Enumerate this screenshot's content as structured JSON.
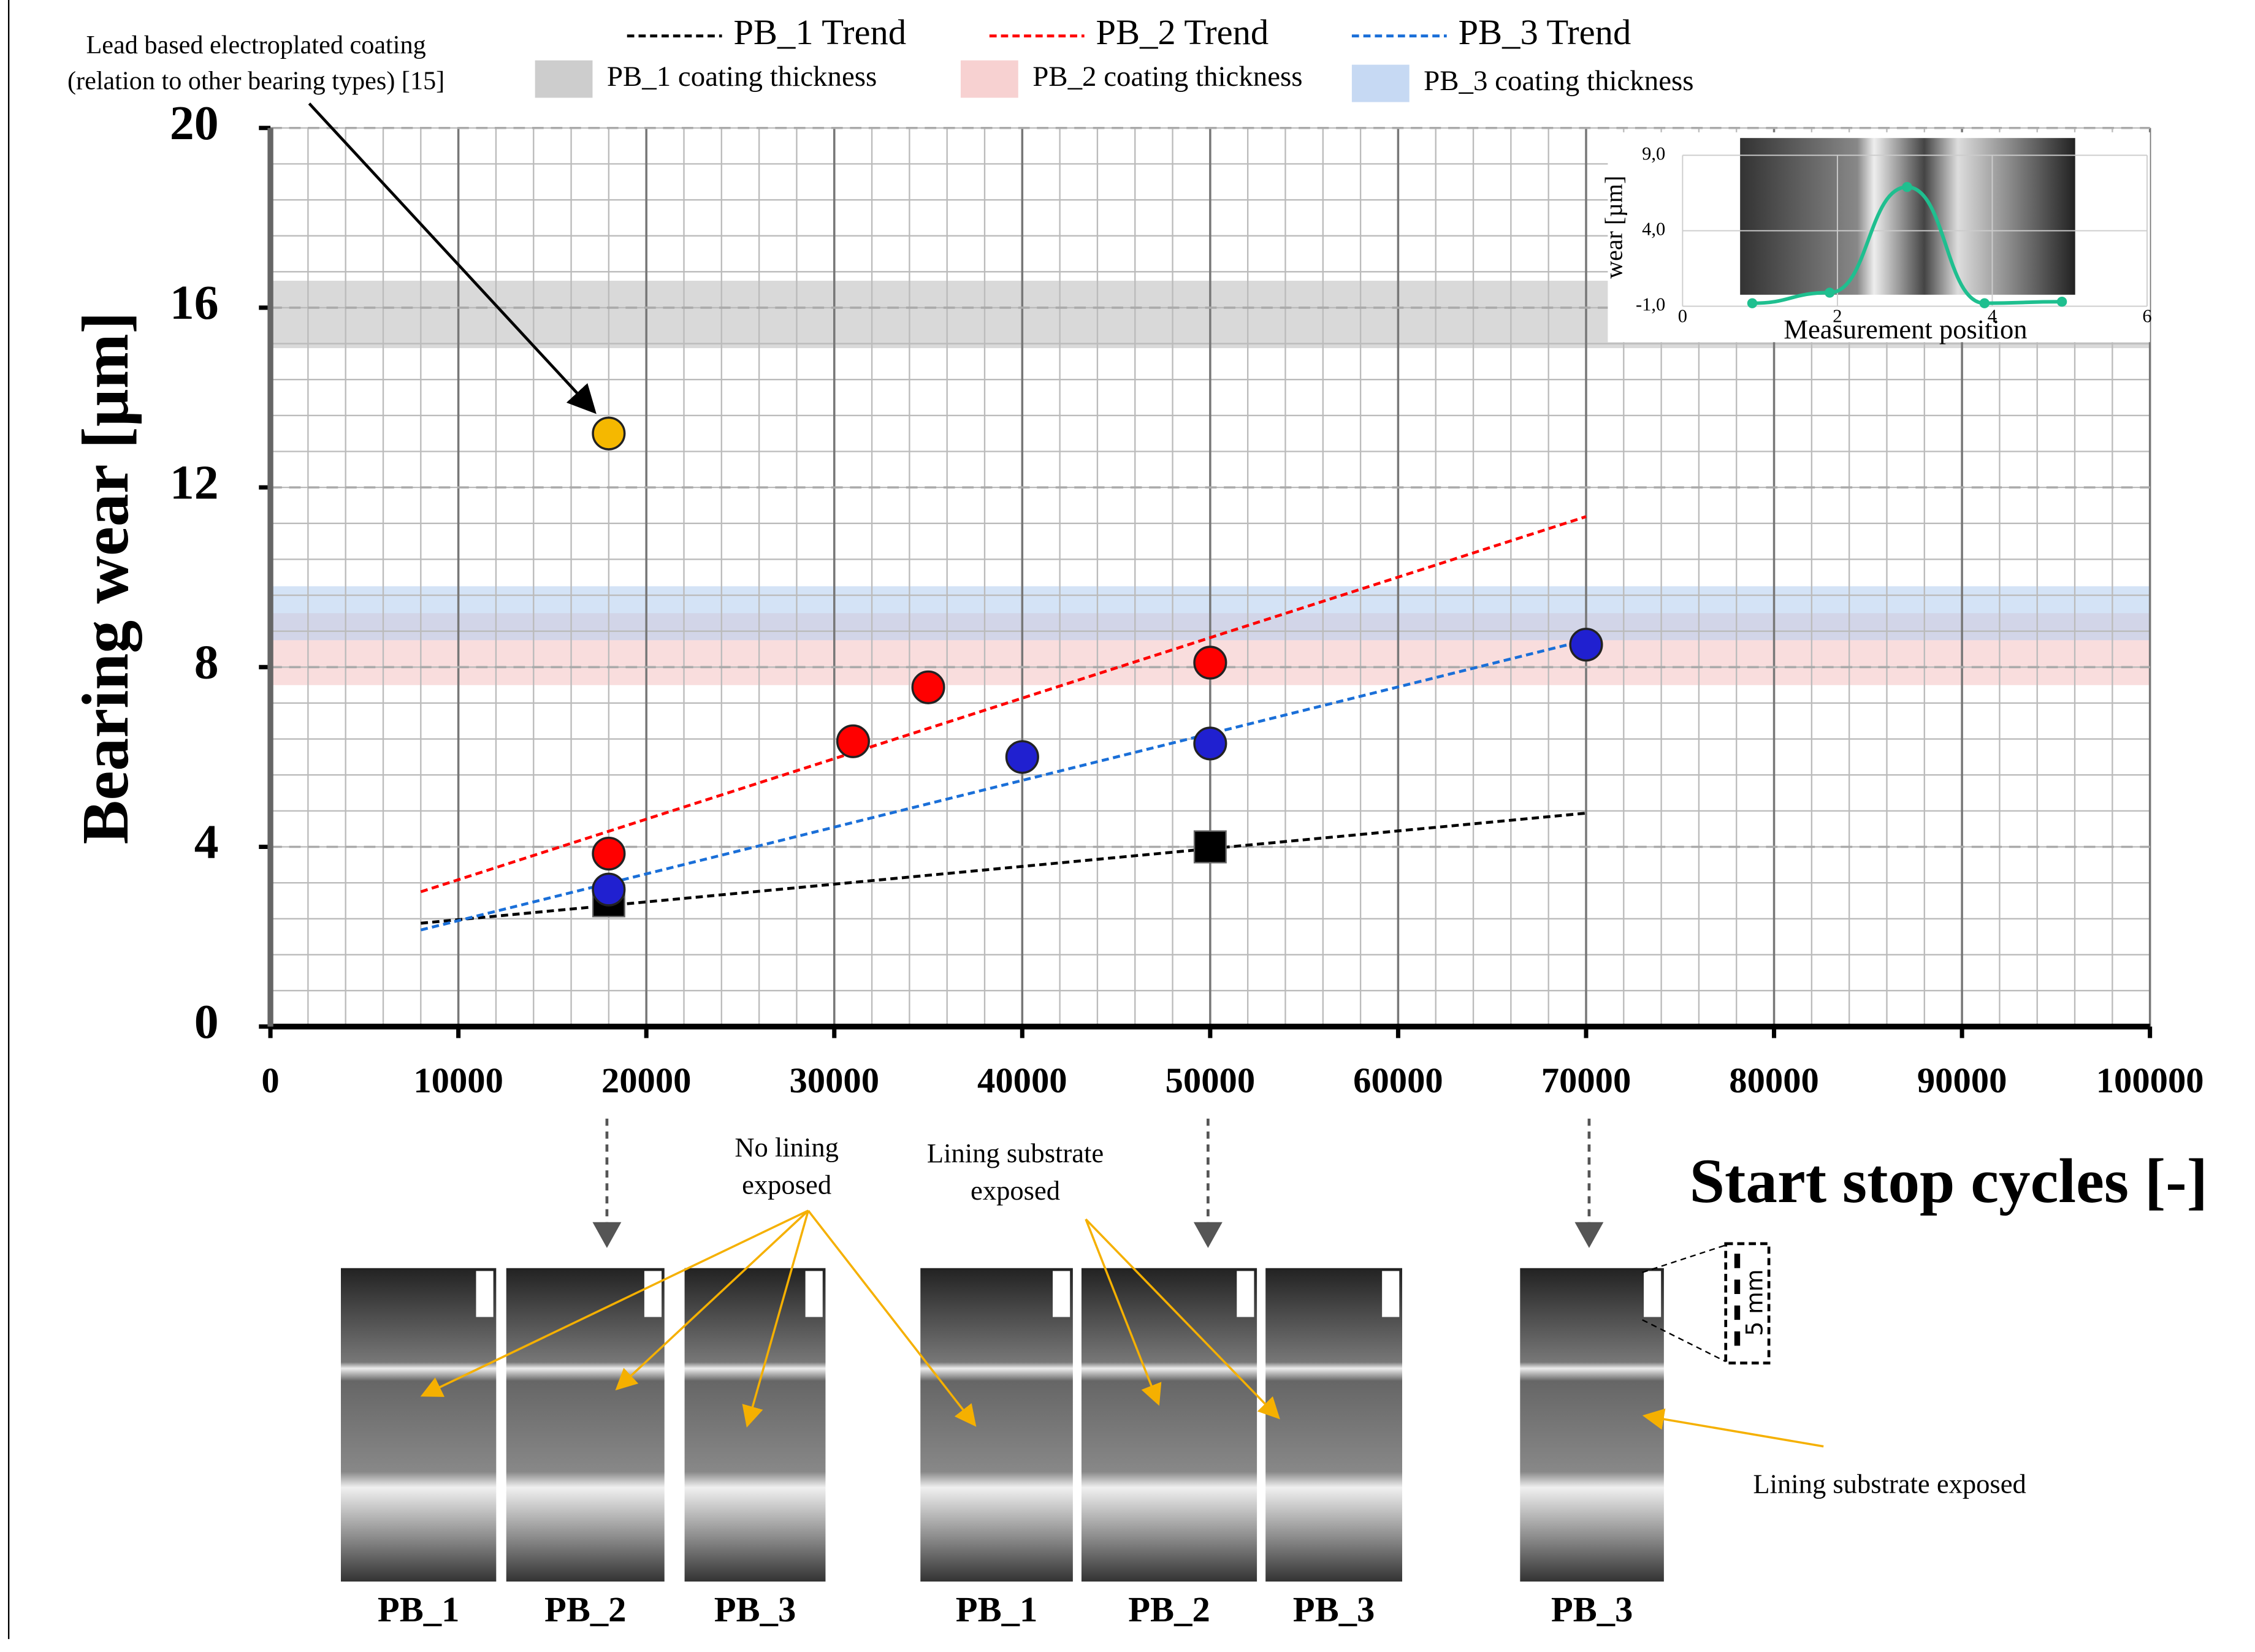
{
  "chart_data": [
    {
      "type": "scatter",
      "xlabel": "Start stop cycles [-]",
      "ylabel": "Bearing wear [µm]",
      "xlim": [
        0,
        100000
      ],
      "ylim": [
        0,
        20
      ],
      "xticks": [
        0,
        10000,
        20000,
        30000,
        40000,
        50000,
        60000,
        70000,
        80000,
        90000,
        100000
      ],
      "yticks": [
        0,
        4,
        8,
        12,
        16,
        20
      ],
      "grid": true,
      "minor_grid": {
        "x": 2000,
        "y": 0.8
      },
      "legend": "top",
      "series": [
        {
          "marker": "square",
          "color": "#000000",
          "x": [
            18000,
            50000
          ],
          "values": [
            2.8,
            4.0
          ]
        },
        {
          "marker": "circle",
          "color": "#ff0000",
          "x": [
            18000,
            31000,
            35000,
            50000
          ],
          "values": [
            3.85,
            6.35,
            7.55,
            8.1
          ]
        },
        {
          "marker": "circle",
          "color": "#2020d0",
          "x": [
            18000,
            40000,
            50000,
            70000
          ],
          "values": [
            3.05,
            6.0,
            6.3,
            8.5
          ]
        },
        {
          "marker": "circle",
          "color": "#f5b800",
          "x": [
            18000
          ],
          "values": [
            13.2
          ]
        }
      ],
      "trends": [
        {
          "name": "PB_1 Trend",
          "color": "#000000",
          "x": [
            8000,
            70000
          ],
          "values": [
            2.3,
            4.75
          ]
        },
        {
          "name": "PB_2 Trend",
          "color": "#ff0000",
          "x": [
            8000,
            70000
          ],
          "values": [
            3.0,
            11.35
          ]
        },
        {
          "name": "PB_3 Trend",
          "color": "#1a6fd8",
          "x": [
            8000,
            70000
          ],
          "values": [
            2.15,
            8.6
          ]
        }
      ],
      "bands": [
        {
          "name": "PB_1 coating thickness",
          "color": "#c0c0c0",
          "range": [
            15.1,
            16.6
          ]
        },
        {
          "name": "PB_2 coating thickness",
          "color": "#f5c6c6",
          "range": [
            7.6,
            9.2
          ]
        },
        {
          "name": "PB_3 coating thickness",
          "color": "#b8d0f0",
          "range": [
            8.6,
            9.8
          ]
        }
      ]
    },
    {
      "type": "line",
      "xlabel": "Measurement position",
      "ylabel": "wear [µm]",
      "xlim": [
        0,
        6
      ],
      "ylim": [
        -1,
        9
      ],
      "xticks": [
        0,
        2,
        4,
        6
      ],
      "yticks": [
        {
          "value": -1,
          "label": "-1,0"
        },
        {
          "value": 4,
          "label": "4,0"
        },
        {
          "value": 9,
          "label": "9,0"
        }
      ],
      "series": [
        {
          "color": "#1fbf8f",
          "x": [
            0.9,
            1.9,
            2.9,
            3.9,
            4.9
          ],
          "values": [
            -0.8,
            -0.1,
            6.9,
            -0.8,
            -0.7
          ]
        }
      ]
    }
  ],
  "annotations": {
    "coating": [
      "Lead based electroplated coating",
      "(relation to other bearing types) [15]"
    ],
    "no_lining": [
      "No lining",
      "exposed"
    ],
    "lining_1": [
      "Lining substrate",
      "exposed"
    ],
    "lining_2": "Lining substrate exposed",
    "scale": "5 mm"
  },
  "photo_labels": [
    "PB_1",
    "PB_2",
    "PB_3",
    "PB_1",
    "PB_2",
    "PB_3",
    "PB_3"
  ]
}
